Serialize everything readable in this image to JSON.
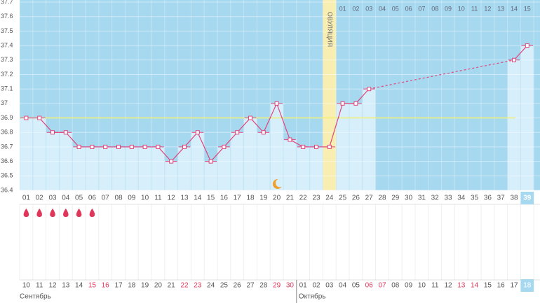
{
  "chart_data": {
    "type": "line",
    "categories": [
      "01",
      "02",
      "03",
      "04",
      "05",
      "06",
      "07",
      "08",
      "09",
      "10",
      "11",
      "12",
      "13",
      "14",
      "15",
      "16",
      "17",
      "18",
      "19",
      "20",
      "21",
      "22",
      "23",
      "24",
      "25",
      "26",
      "27",
      "28",
      "29",
      "30",
      "31",
      "32",
      "33",
      "34",
      "35",
      "36",
      "37",
      "38",
      "39"
    ],
    "values": [
      36.9,
      36.9,
      36.8,
      36.8,
      36.7,
      36.7,
      36.7,
      36.7,
      36.7,
      36.7,
      36.7,
      36.6,
      36.7,
      36.8,
      36.6,
      36.7,
      36.8,
      36.9,
      36.8,
      37.0,
      36.75,
      36.7,
      36.7,
      36.7,
      37.0,
      37.0,
      37.1,
      null,
      null,
      null,
      null,
      null,
      null,
      null,
      null,
      null,
      null,
      37.3,
      37.4
    ],
    "ylim": [
      36.4,
      37.7
    ],
    "yticks": [
      36.4,
      36.5,
      36.6,
      36.7,
      36.8,
      36.9,
      37,
      37.1,
      37.2,
      37.3,
      37.4,
      37.5,
      37.6,
      37.7
    ],
    "grid": true,
    "coverline": 36.9,
    "ovulation_day": 24,
    "ovulation_label": "ОВУЛЯЦИЯ",
    "luteal_days": [
      "01",
      "02",
      "03",
      "04",
      "05",
      "06",
      "07",
      "08",
      "09",
      "10",
      "11",
      "12",
      "13",
      "14",
      "15"
    ],
    "period_days": [
      1,
      2,
      3,
      4,
      5,
      6
    ],
    "moon_day": 20,
    "current_day": 39,
    "line_color": "#e0457b",
    "weekend_color": "#e0365a",
    "dates": [
      {
        "label": "10",
        "weekend": false
      },
      {
        "label": "11",
        "weekend": false
      },
      {
        "label": "12",
        "weekend": false
      },
      {
        "label": "13",
        "weekend": false
      },
      {
        "label": "14",
        "weekend": false
      },
      {
        "label": "15",
        "weekend": true
      },
      {
        "label": "16",
        "weekend": true
      },
      {
        "label": "17",
        "weekend": false
      },
      {
        "label": "18",
        "weekend": false
      },
      {
        "label": "19",
        "weekend": false
      },
      {
        "label": "20",
        "weekend": false
      },
      {
        "label": "21",
        "weekend": false
      },
      {
        "label": "22",
        "weekend": true
      },
      {
        "label": "23",
        "weekend": true
      },
      {
        "label": "24",
        "weekend": false
      },
      {
        "label": "25",
        "weekend": false
      },
      {
        "label": "26",
        "weekend": false
      },
      {
        "label": "27",
        "weekend": false
      },
      {
        "label": "28",
        "weekend": false
      },
      {
        "label": "29",
        "weekend": true
      },
      {
        "label": "30",
        "weekend": true
      },
      {
        "label": "01",
        "weekend": false
      },
      {
        "label": "02",
        "weekend": false
      },
      {
        "label": "03",
        "weekend": false
      },
      {
        "label": "04",
        "weekend": false
      },
      {
        "label": "05",
        "weekend": false
      },
      {
        "label": "06",
        "weekend": true
      },
      {
        "label": "07",
        "weekend": true
      },
      {
        "label": "08",
        "weekend": false
      },
      {
        "label": "09",
        "weekend": false
      },
      {
        "label": "10",
        "weekend": false
      },
      {
        "label": "11",
        "weekend": false
      },
      {
        "label": "12",
        "weekend": false
      },
      {
        "label": "13",
        "weekend": true
      },
      {
        "label": "14",
        "weekend": true
      },
      {
        "label": "15",
        "weekend": false
      },
      {
        "label": "16",
        "weekend": false
      },
      {
        "label": "17",
        "weekend": false
      },
      {
        "label": "18",
        "weekend": false
      }
    ],
    "months": [
      "Сентябрь",
      "Октябрь"
    ]
  }
}
